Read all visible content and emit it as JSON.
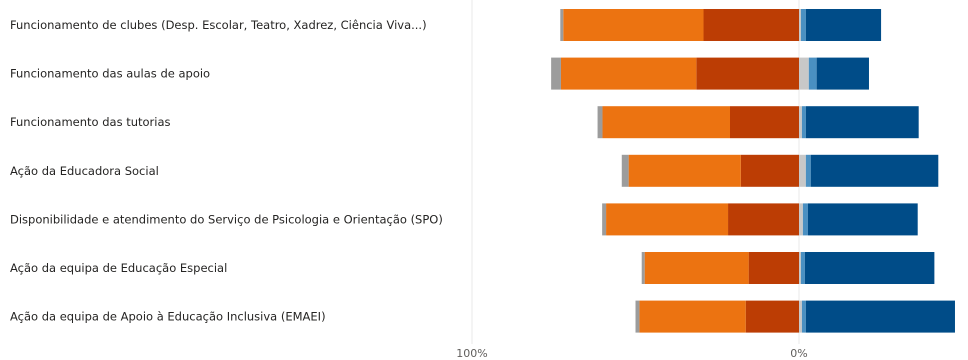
{
  "chart_data": {
    "type": "bar",
    "orientation": "horizontal",
    "stacked": "diverging",
    "categories": [
      "Funcionamento de clubes (Desp. Escolar, Teatro, Xadrez, Ciência Viva...)",
      "Funcionamento das aulas de apoio",
      "Funcionamento das tutorias",
      "Ação da Educadora Social",
      "Disponibilidade e atendimento do Serviço de Psicologia e Orientação (SPO)",
      "Ação da equipa de Educação Especial",
      "Ação da equipa de Apoio à Educação Inclusiva (EMAEI)"
    ],
    "x_tick_labels": [
      "100%",
      "0%"
    ],
    "xlim": [
      -100,
      60
    ],
    "series": [
      {
        "color": "#BC3D04",
        "values": [
          -29.2,
          -31.4,
          -21.1,
          -17.8,
          -21.7,
          -15.4,
          -16.3
        ]
      },
      {
        "color": "#EC7311",
        "values": [
          -42.9,
          -41.4,
          -39.0,
          -34.3,
          -37.3,
          -31.8,
          -32.5
        ]
      },
      {
        "color": "#9C9C9C",
        "values": [
          -0.9,
          -3.0,
          -1.5,
          -2.1,
          -1.2,
          -0.9,
          -1.2
        ]
      },
      {
        "color": "#C8C8C8",
        "values": [
          0.6,
          3.0,
          0.9,
          2.1,
          1.2,
          0.6,
          0.9
        ]
      },
      {
        "color": "#4A90C2",
        "values": [
          1.5,
          2.4,
          1.2,
          1.5,
          1.5,
          1.2,
          1.2
        ]
      },
      {
        "color": "#004C88",
        "values": [
          23.0,
          16.0,
          34.5,
          39.0,
          33.6,
          39.6,
          45.6
        ]
      }
    ],
    "grid": "none"
  }
}
